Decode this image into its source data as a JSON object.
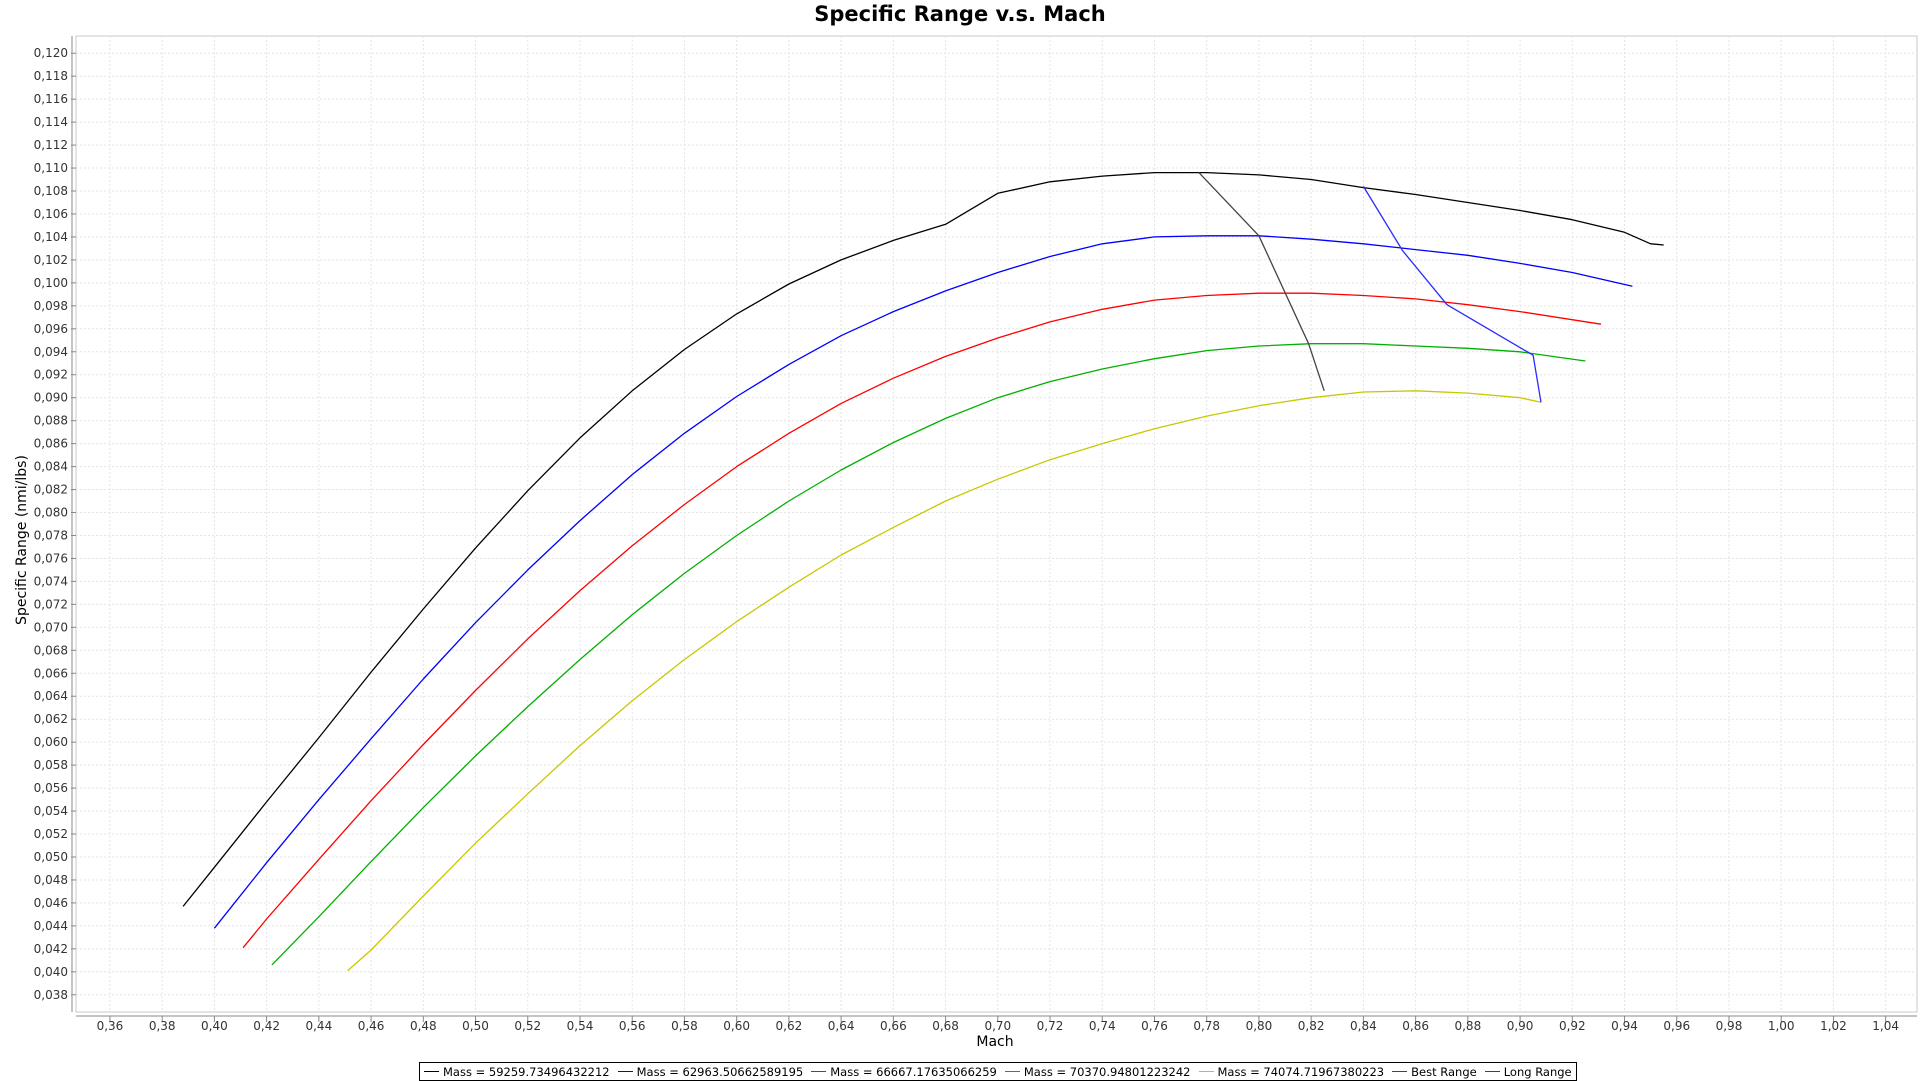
{
  "chart_data": {
    "type": "line",
    "title": "Specific Range v.s. Mach",
    "xlabel": "Mach",
    "ylabel": "Specific Range (nmi/lbs)",
    "xlim": [
      0.347,
      1.052
    ],
    "ylim": [
      0.0365,
      0.1215
    ],
    "x_ticks": [
      "0,36",
      "0,38",
      "0,40",
      "0,42",
      "0,44",
      "0,46",
      "0,48",
      "0,50",
      "0,52",
      "0,54",
      "0,56",
      "0,58",
      "0,60",
      "0,62",
      "0,64",
      "0,66",
      "0,68",
      "0,70",
      "0,72",
      "0,74",
      "0,76",
      "0,78",
      "0,80",
      "0,82",
      "0,84",
      "0,86",
      "0,88",
      "0,90",
      "0,92",
      "0,94",
      "0,96",
      "0,98",
      "1,00",
      "1,02",
      "1,04"
    ],
    "y_ticks": [
      "0,038",
      "0,040",
      "0,042",
      "0,044",
      "0,046",
      "0,048",
      "0,050",
      "0,052",
      "0,054",
      "0,056",
      "0,058",
      "0,060",
      "0,062",
      "0,064",
      "0,066",
      "0,068",
      "0,070",
      "0,072",
      "0,074",
      "0,076",
      "0,078",
      "0,080",
      "0,082",
      "0,084",
      "0,086",
      "0,088",
      "0,090",
      "0,092",
      "0,094",
      "0,096",
      "0,098",
      "0,100",
      "0,102",
      "0,104",
      "0,106",
      "0,108",
      "0,110",
      "0,112",
      "0,114",
      "0,116",
      "0,118",
      "0,120"
    ],
    "grid": true,
    "legend_position": "bottom",
    "series": [
      {
        "name": "Mass = 59259.73496432212",
        "color": "#000000",
        "x": [
          0.388,
          0.4,
          0.42,
          0.44,
          0.46,
          0.48,
          0.5,
          0.52,
          0.54,
          0.56,
          0.58,
          0.6,
          0.62,
          0.64,
          0.66,
          0.68,
          0.7,
          0.72,
          0.74,
          0.76,
          0.78,
          0.8,
          0.82,
          0.84,
          0.86,
          0.88,
          0.9,
          0.92,
          0.94,
          0.95,
          0.955
        ],
        "y": [
          0.0457,
          0.0491,
          0.0548,
          0.0604,
          0.0661,
          0.0716,
          0.0769,
          0.0819,
          0.0865,
          0.0906,
          0.0942,
          0.0973,
          0.0999,
          0.102,
          0.1037,
          0.1051,
          0.1078,
          0.1088,
          0.1093,
          0.1096,
          0.1096,
          0.1094,
          0.109,
          0.1083,
          0.1077,
          0.107,
          0.1063,
          0.1055,
          0.1044,
          0.1034,
          0.1033
        ]
      },
      {
        "name": "Mass = 62963.50662589195",
        "color": "#0000ff",
        "x": [
          0.4,
          0.42,
          0.44,
          0.46,
          0.48,
          0.5,
          0.52,
          0.54,
          0.56,
          0.58,
          0.6,
          0.62,
          0.64,
          0.66,
          0.68,
          0.7,
          0.72,
          0.74,
          0.76,
          0.78,
          0.8,
          0.82,
          0.84,
          0.86,
          0.88,
          0.9,
          0.92,
          0.943
        ],
        "y": [
          0.0438,
          0.0495,
          0.055,
          0.0603,
          0.0655,
          0.0704,
          0.075,
          0.0793,
          0.0833,
          0.0869,
          0.0901,
          0.0929,
          0.0954,
          0.0975,
          0.0993,
          0.1009,
          0.1023,
          0.1034,
          0.104,
          0.1041,
          0.1041,
          0.1038,
          0.1034,
          0.1029,
          0.1024,
          0.1017,
          0.1009,
          0.0997
        ]
      },
      {
        "name": "Mass = 66667.17635066259",
        "color": "#ff0000",
        "x": [
          0.411,
          0.42,
          0.44,
          0.46,
          0.48,
          0.5,
          0.52,
          0.54,
          0.56,
          0.58,
          0.6,
          0.62,
          0.64,
          0.66,
          0.68,
          0.7,
          0.72,
          0.74,
          0.76,
          0.78,
          0.8,
          0.82,
          0.84,
          0.86,
          0.88,
          0.9,
          0.931
        ],
        "y": [
          0.0421,
          0.0446,
          0.0498,
          0.0549,
          0.0598,
          0.0645,
          0.069,
          0.0732,
          0.0771,
          0.0807,
          0.084,
          0.0869,
          0.0895,
          0.0917,
          0.0936,
          0.0952,
          0.0966,
          0.0977,
          0.0985,
          0.0989,
          0.0991,
          0.0991,
          0.0989,
          0.0986,
          0.0981,
          0.0975,
          0.0964
        ]
      },
      {
        "name": "Mass = 70370.94801223242",
        "color": "#00b000",
        "x": [
          0.422,
          0.44,
          0.46,
          0.48,
          0.5,
          0.52,
          0.54,
          0.56,
          0.58,
          0.6,
          0.62,
          0.64,
          0.66,
          0.68,
          0.7,
          0.72,
          0.74,
          0.76,
          0.78,
          0.8,
          0.82,
          0.84,
          0.86,
          0.88,
          0.9,
          0.925
        ],
        "y": [
          0.0406,
          0.0448,
          0.0496,
          0.0543,
          0.0588,
          0.0631,
          0.0672,
          0.0711,
          0.0747,
          0.078,
          0.081,
          0.0837,
          0.0861,
          0.0882,
          0.09,
          0.0914,
          0.0925,
          0.0934,
          0.0941,
          0.0945,
          0.0947,
          0.0947,
          0.0945,
          0.0943,
          0.094,
          0.0932
        ]
      },
      {
        "name": "Mass = 74074.71967380223",
        "color": "#c8c800",
        "x": [
          0.451,
          0.46,
          0.48,
          0.5,
          0.52,
          0.54,
          0.56,
          0.58,
          0.6,
          0.62,
          0.64,
          0.66,
          0.68,
          0.7,
          0.72,
          0.74,
          0.76,
          0.78,
          0.8,
          0.82,
          0.84,
          0.86,
          0.88,
          0.9,
          0.908
        ],
        "y": [
          0.0401,
          0.0419,
          0.0466,
          0.0512,
          0.0555,
          0.0597,
          0.0636,
          0.0672,
          0.0705,
          0.0735,
          0.0763,
          0.0787,
          0.081,
          0.0829,
          0.0846,
          0.086,
          0.0873,
          0.0884,
          0.0893,
          0.09,
          0.0905,
          0.0906,
          0.0904,
          0.09,
          0.0896
        ]
      },
      {
        "name": "Best Range",
        "color": "#444444",
        "x": [
          0.777,
          0.8,
          0.819,
          0.825
        ],
        "y": [
          0.1096,
          0.1041,
          0.0947,
          0.0906
        ]
      },
      {
        "name": "Long Range",
        "color": "#2a2aff",
        "x": [
          0.84,
          0.855,
          0.872,
          0.905,
          0.908
        ],
        "y": [
          0.1084,
          0.1028,
          0.0981,
          0.0937,
          0.0896
        ]
      }
    ]
  }
}
